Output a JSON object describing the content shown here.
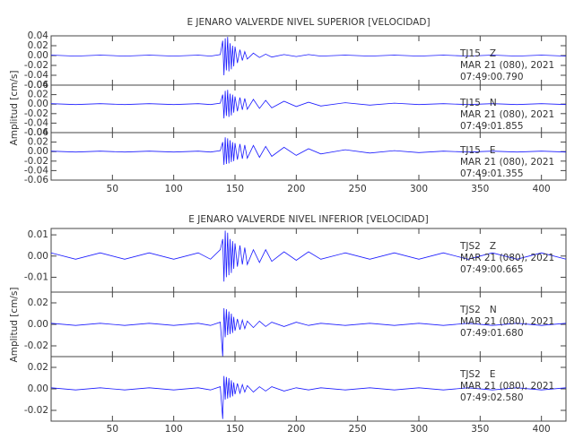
{
  "chart_data": [
    {
      "type": "line",
      "title": "E JENARO VALVERDE NIVEL SUPERIOR [VELOCIDAD]",
      "ylabel": "Amplitud [cm/s]",
      "xlim": [
        0,
        420
      ],
      "xticks": [
        50,
        100,
        150,
        200,
        250,
        300,
        350,
        400
      ],
      "x": [
        0,
        20,
        40,
        60,
        80,
        100,
        120,
        130,
        138,
        140,
        141,
        142,
        143,
        144,
        145,
        146,
        147,
        148,
        149,
        150,
        152,
        154,
        156,
        158,
        160,
        165,
        170,
        175,
        180,
        190,
        200,
        210,
        220,
        240,
        260,
        280,
        300,
        320,
        340,
        360,
        380,
        400,
        420
      ],
      "panels": [
        {
          "ylim": [
            -0.06,
            0.04
          ],
          "yticks": [
            {
              "value": -0.06,
              "label": "-0.06"
            },
            {
              "value": -0.04,
              "label": "-0.04"
            },
            {
              "value": -0.02,
              "label": "-0.02"
            },
            {
              "value": 0,
              "label": "0.00"
            },
            {
              "value": 0.02,
              "label": "0.02"
            },
            {
              "value": 0.04,
              "label": "0.04"
            }
          ],
          "annotations": [
            "MAR 21 (080), 2021",
            "07:49:00.790"
          ],
          "series": [
            {
              "name": "TJ15   Z",
              "color": "#1a1aff",
              "values": [
                0.001,
                -0.001,
                0.001,
                -0.001,
                0.001,
                -0.001,
                0.001,
                -0.001,
                0.002,
                0.03,
                -0.04,
                0.035,
                -0.03,
                0.038,
                -0.032,
                0.025,
                -0.028,
                0.02,
                -0.022,
                0.018,
                -0.015,
                0.012,
                -0.01,
                0.008,
                -0.007,
                0.005,
                -0.004,
                0.003,
                -0.003,
                0.002,
                -0.002,
                0.002,
                -0.001,
                0.001,
                -0.001,
                0.001,
                -0.001,
                0.001,
                -0.001,
                0.001,
                -0.001,
                0.001,
                -0.001
              ]
            }
          ]
        },
        {
          "ylim": [
            -0.06,
            0.04
          ],
          "yticks": [
            {
              "value": -0.06,
              "label": "-0.06"
            },
            {
              "value": -0.04,
              "label": "-0.04"
            },
            {
              "value": -0.02,
              "label": "-0.02"
            },
            {
              "value": 0,
              "label": "0.00"
            },
            {
              "value": 0.02,
              "label": "0.02"
            },
            {
              "value": 0.04,
              "label": "0.04"
            }
          ],
          "annotations": [
            "MAR 21 (080), 2021",
            "07:49:01.855"
          ],
          "series": [
            {
              "name": "TJ15   N",
              "color": "#1a1aff",
              "values": [
                0.001,
                -0.001,
                0.001,
                -0.001,
                0.001,
                -0.001,
                0.001,
                -0.001,
                0.002,
                0.02,
                -0.03,
                0.028,
                -0.025,
                0.03,
                -0.027,
                0.022,
                -0.024,
                0.02,
                -0.018,
                0.016,
                -0.015,
                0.014,
                -0.012,
                0.012,
                -0.011,
                0.01,
                -0.009,
                0.008,
                -0.008,
                0.006,
                -0.005,
                0.004,
                -0.004,
                0.003,
                -0.002,
                0.002,
                -0.001,
                0.001,
                -0.001,
                0.001,
                -0.001,
                0.001,
                -0.001
              ]
            }
          ]
        },
        {
          "ylim": [
            -0.06,
            0.04
          ],
          "yticks": [
            {
              "value": -0.06,
              "label": "-0.06"
            },
            {
              "value": -0.04,
              "label": "-0.04"
            },
            {
              "value": -0.02,
              "label": "-0.02"
            },
            {
              "value": 0,
              "label": "0.00"
            },
            {
              "value": 0.02,
              "label": "0.02"
            },
            {
              "value": 0.04,
              "label": "0.04"
            }
          ],
          "annotations": [
            "MAR 21 (080), 2021",
            "07:49:01.355"
          ],
          "series": [
            {
              "name": "TJ15   E",
              "color": "#1a1aff",
              "values": [
                0.001,
                -0.001,
                0.001,
                -0.001,
                0.001,
                -0.001,
                0.001,
                -0.001,
                0.002,
                0.02,
                -0.028,
                0.03,
                -0.026,
                0.028,
                -0.025,
                0.024,
                -0.022,
                0.02,
                -0.02,
                0.018,
                -0.017,
                0.016,
                -0.015,
                0.014,
                -0.014,
                0.013,
                -0.012,
                0.011,
                -0.01,
                0.009,
                -0.008,
                0.006,
                -0.005,
                0.004,
                -0.003,
                0.002,
                -0.002,
                0.001,
                -0.001,
                0.001,
                -0.001,
                0.001,
                -0.001
              ]
            }
          ]
        }
      ]
    },
    {
      "type": "line",
      "title": "E JENARO VALVERDE NIVEL INFERIOR [VELOCIDAD]",
      "ylabel": "Amplitud [cm/s]",
      "xlim": [
        0,
        420
      ],
      "xticks": [
        50,
        100,
        150,
        200,
        250,
        300,
        350,
        400
      ],
      "x": [
        0,
        20,
        40,
        60,
        80,
        100,
        120,
        130,
        138,
        140,
        141,
        142,
        143,
        144,
        145,
        146,
        147,
        148,
        149,
        150,
        152,
        154,
        156,
        158,
        160,
        165,
        170,
        175,
        180,
        190,
        200,
        210,
        220,
        240,
        260,
        280,
        300,
        320,
        340,
        360,
        380,
        400,
        420
      ],
      "panels": [
        {
          "ylim": [
            -0.017,
            0.013
          ],
          "yticks": [
            {
              "value": -0.01,
              "label": "-0.01"
            },
            {
              "value": 0,
              "label": "0.00"
            },
            {
              "value": 0.01,
              "label": "0.01"
            }
          ],
          "annotations": [
            "MAR 21 (080), 2021",
            "07:49:00.665"
          ],
          "series": [
            {
              "name": "TJS2   Z",
              "color": "#1a1aff",
              "values": [
                0.0015,
                -0.0015,
                0.0015,
                -0.0015,
                0.0015,
                -0.0015,
                0.0015,
                -0.0015,
                0.003,
                0.008,
                -0.012,
                0.012,
                -0.01,
                0.011,
                -0.009,
                0.008,
                -0.008,
                0.007,
                -0.006,
                0.006,
                -0.005,
                0.005,
                -0.004,
                0.004,
                -0.004,
                0.003,
                -0.003,
                0.003,
                -0.0025,
                0.002,
                -0.002,
                0.002,
                -0.0015,
                0.0015,
                -0.0015,
                0.0015,
                -0.0015,
                0.0015,
                -0.0015,
                0.0015,
                -0.0015,
                0.0015,
                -0.0015
              ]
            }
          ]
        },
        {
          "ylim": [
            -0.03,
            0.03
          ],
          "yticks": [
            {
              "value": -0.02,
              "label": "-0.02"
            },
            {
              "value": 0,
              "label": "0.00"
            },
            {
              "value": 0.02,
              "label": "0.02"
            }
          ],
          "annotations": [
            "MAR 21 (080), 2021",
            "07:49:01.680"
          ],
          "series": [
            {
              "name": "TJS2   N",
              "color": "#1a1aff",
              "values": [
                0.001,
                -0.001,
                0.001,
                -0.001,
                0.001,
                -0.001,
                0.001,
                -0.001,
                0.002,
                -0.03,
                0.015,
                -0.012,
                0.014,
                -0.01,
                0.012,
                -0.009,
                0.01,
                -0.008,
                0.007,
                -0.006,
                0.005,
                -0.005,
                0.004,
                -0.004,
                0.003,
                -0.003,
                0.003,
                -0.002,
                0.002,
                -0.002,
                0.002,
                -0.001,
                0.001,
                -0.001,
                0.001,
                -0.001,
                0.001,
                -0.001,
                0.001,
                -0.001,
                0.001,
                -0.001,
                0.001
              ]
            }
          ]
        },
        {
          "ylim": [
            -0.03,
            0.03
          ],
          "yticks": [
            {
              "value": -0.02,
              "label": "-0.02"
            },
            {
              "value": 0,
              "label": "0.00"
            },
            {
              "value": 0.02,
              "label": "0.02"
            }
          ],
          "annotations": [
            "MAR 21 (080), 2021",
            "07:49:02.580"
          ],
          "series": [
            {
              "name": "TJS2   E",
              "color": "#1a1aff",
              "values": [
                0.001,
                -0.001,
                0.001,
                -0.001,
                0.001,
                -0.001,
                0.001,
                -0.001,
                0.002,
                -0.028,
                0.012,
                -0.01,
                0.011,
                -0.009,
                0.01,
                -0.008,
                0.008,
                -0.007,
                0.006,
                -0.005,
                0.005,
                -0.004,
                0.004,
                -0.003,
                0.003,
                -0.003,
                0.002,
                -0.002,
                0.002,
                -0.002,
                0.001,
                -0.001,
                0.001,
                -0.001,
                0.001,
                -0.001,
                0.001,
                -0.001,
                0.001,
                -0.001,
                0.001,
                -0.001,
                0.001
              ]
            }
          ]
        }
      ]
    }
  ]
}
